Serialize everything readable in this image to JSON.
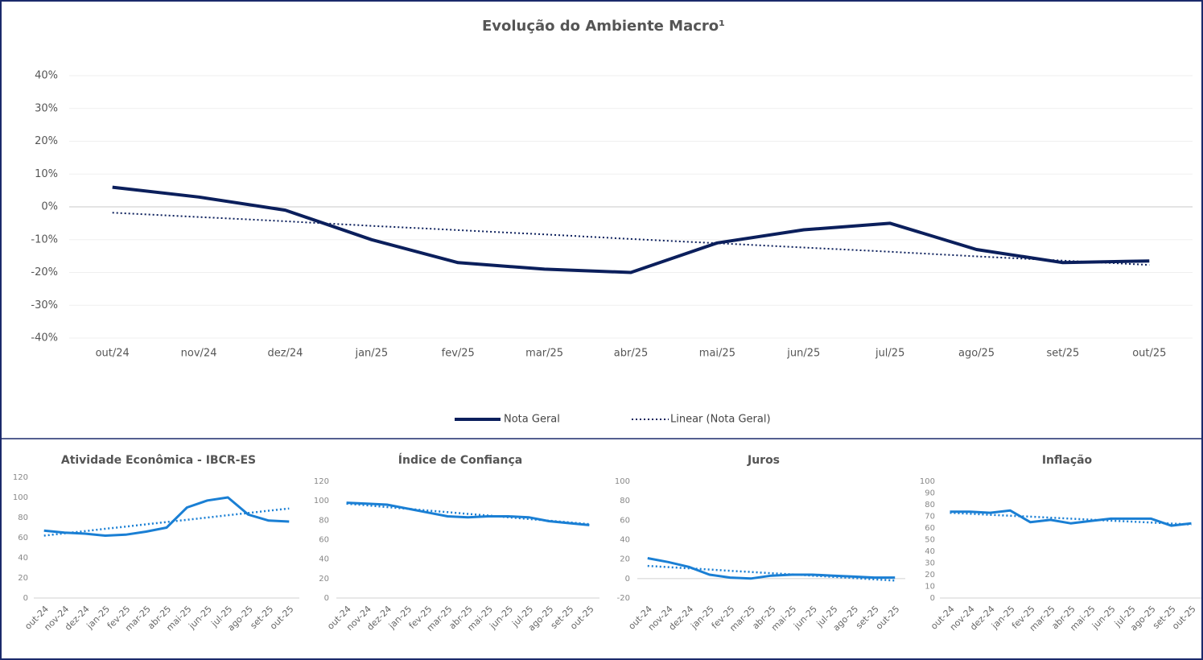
{
  "chart_data": [
    {
      "type": "line",
      "title": "Evolução do Ambiente Macro¹",
      "categories": [
        "out/24",
        "nov/24",
        "dez/24",
        "jan/25",
        "fev/25",
        "mar/25",
        "abr/25",
        "mai/25",
        "jun/25",
        "jul/25",
        "ago/25",
        "set/25",
        "out/25"
      ],
      "series": [
        {
          "name": "Nota Geral",
          "color": "#0b1f5c",
          "line_style": "solid",
          "values": [
            6,
            3,
            -1,
            -10,
            -17,
            -19,
            -20,
            -11,
            -7,
            -5,
            -13,
            -17,
            -16.5
          ]
        },
        {
          "name": "Linear (Nota Geral)",
          "color": "#0b1f5c",
          "line_style": "dotted",
          "values": [
            -1.8,
            -3.1,
            -4.4,
            -5.8,
            -7.1,
            -8.4,
            -9.8,
            -11.1,
            -12.4,
            -13.7,
            -15.1,
            -16.4,
            -17.7
          ]
        }
      ],
      "ylim": [
        -40,
        40
      ],
      "yticks": [
        {
          "value": -40,
          "label": "-40%"
        },
        {
          "value": -30,
          "label": "-30%"
        },
        {
          "value": -20,
          "label": "-20%"
        },
        {
          "value": -10,
          "label": "-10%"
        },
        {
          "value": 0,
          "label": "0%"
        },
        {
          "value": 10,
          "label": "10%"
        },
        {
          "value": 20,
          "label": "20%"
        },
        {
          "value": 30,
          "label": "30%"
        },
        {
          "value": 40,
          "label": "40%"
        }
      ],
      "grid": true,
      "legend": "bottom"
    },
    {
      "type": "line",
      "title": "Atividade Econômica - IBCR-ES",
      "categories": [
        "out-24",
        "nov-24",
        "dez-24",
        "jan-25",
        "fev-25",
        "mar-25",
        "abr-25",
        "mai-25",
        "jun-25",
        "jul-25",
        "ago-25",
        "set-25",
        "out-25"
      ],
      "series": [
        {
          "color": "#1a7fd4",
          "line_style": "solid",
          "values": [
            67,
            65,
            64,
            62,
            63,
            66,
            70,
            90,
            97,
            100,
            83,
            77,
            76
          ]
        },
        {
          "color": "#1a7fd4",
          "line_style": "dotted",
          "values": [
            62,
            64.3,
            66.5,
            68.8,
            71,
            73.3,
            75.5,
            77.8,
            80,
            82.3,
            84.5,
            86.8,
            89
          ]
        }
      ],
      "ylim": [
        0,
        120
      ],
      "yticks": [
        0,
        20,
        40,
        60,
        80,
        100,
        120
      ],
      "grid": false
    },
    {
      "type": "line",
      "title": "Índice de Confiança",
      "categories": [
        "out-24",
        "nov-24",
        "dez-24",
        "jan-25",
        "fev-25",
        "mar-25",
        "abr-25",
        "mai-25",
        "jun-25",
        "jul-25",
        "ago-25",
        "set-25",
        "out-25"
      ],
      "series": [
        {
          "color": "#1a7fd4",
          "line_style": "solid",
          "values": [
            98,
            97,
            96,
            92,
            88,
            84,
            83,
            84,
            84,
            83,
            79,
            77,
            75
          ]
        },
        {
          "color": "#1a7fd4",
          "line_style": "dotted",
          "values": [
            97,
            95.3,
            93.5,
            91.8,
            90,
            88.3,
            86.5,
            84.8,
            83,
            81.3,
            79.5,
            77.8,
            76
          ]
        }
      ],
      "ylim": [
        0,
        120
      ],
      "yticks": [
        0,
        20,
        40,
        60,
        80,
        100,
        120
      ],
      "grid": false
    },
    {
      "type": "line",
      "title": "Juros",
      "categories": [
        "out-24",
        "nov-24",
        "dez-24",
        "jan-25",
        "fev-25",
        "mar-25",
        "abr-25",
        "mai-25",
        "jun-25",
        "jul-25",
        "ago-25",
        "set-25",
        "out-25"
      ],
      "series": [
        {
          "color": "#1a7fd4",
          "line_style": "solid",
          "values": [
            21,
            17,
            12,
            4,
            1,
            0,
            3,
            4,
            4,
            3,
            2,
            1,
            1
          ]
        },
        {
          "color": "#1a7fd4",
          "line_style": "dotted",
          "values": [
            13,
            11.8,
            10.5,
            9.3,
            8,
            6.8,
            5.5,
            4.3,
            3,
            1.8,
            0.5,
            -0.8,
            -2
          ]
        }
      ],
      "ylim": [
        -20,
        100
      ],
      "yticks": [
        -20,
        0,
        20,
        40,
        60,
        80,
        100
      ],
      "grid": false
    },
    {
      "type": "line",
      "title": "Inflação",
      "categories": [
        "out-24",
        "nov-24",
        "dez-24",
        "jan-25",
        "fev-25",
        "mar-25",
        "abr-25",
        "mai-25",
        "jun-25",
        "jul-25",
        "ago-25",
        "set-25",
        "out-25"
      ],
      "series": [
        {
          "color": "#1a7fd4",
          "line_style": "solid",
          "values": [
            74,
            74,
            73,
            75,
            65,
            67,
            64,
            66,
            68,
            68,
            68,
            62,
            64
          ]
        },
        {
          "color": "#1a7fd4",
          "line_style": "dotted",
          "values": [
            73,
            72.2,
            71.3,
            70.5,
            69.7,
            68.8,
            68,
            67.2,
            66.3,
            65.5,
            64.7,
            63.8,
            63
          ]
        }
      ],
      "ylim": [
        0,
        100
      ],
      "yticks": [
        0,
        10,
        20,
        30,
        40,
        50,
        60,
        70,
        80,
        90,
        100
      ],
      "grid": false
    }
  ]
}
